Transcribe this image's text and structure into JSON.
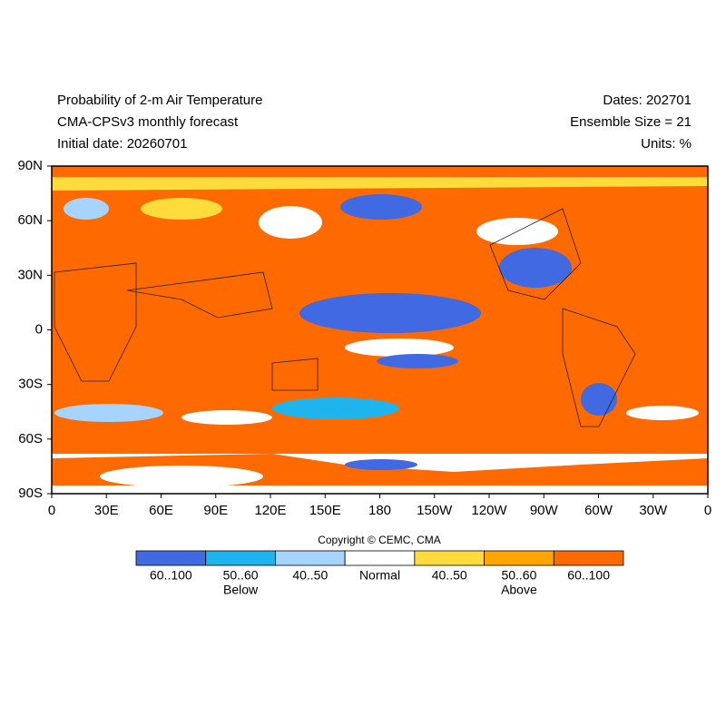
{
  "header": {
    "title_lines": [
      "Probability of 2-m Air Temperature",
      "CMA-CPSv3 monthly forecast",
      "Initial date: 20260701"
    ],
    "right_lines": [
      "Dates: 202701",
      "Ensemble Size = 21",
      "Units: %"
    ]
  },
  "map": {
    "lat_labels": [
      "90N",
      "60N",
      "30N",
      "0",
      "30S",
      "60S",
      "90S"
    ],
    "lon_labels": [
      "0",
      "30E",
      "60E",
      "90E",
      "120E",
      "150E",
      "180",
      "150W",
      "120W",
      "90W",
      "60W",
      "30W",
      "0"
    ]
  },
  "copyright": "Copyright © CEMC, CMA",
  "legend": {
    "items": [
      {
        "label": "60..100",
        "color": "#4169e1"
      },
      {
        "label": "50..60",
        "color": "#1eb4ee"
      },
      {
        "label": "40..50",
        "color": "#a6d4ff"
      },
      {
        "label": "Normal",
        "color": "#ffffff"
      },
      {
        "label": "40..50",
        "color": "#ffdc3c"
      },
      {
        "label": "50..60",
        "color": "#ffa500"
      },
      {
        "label": "60..100",
        "color": "#ff6a00"
      }
    ],
    "group_labels": [
      "Below",
      "Above"
    ]
  }
}
